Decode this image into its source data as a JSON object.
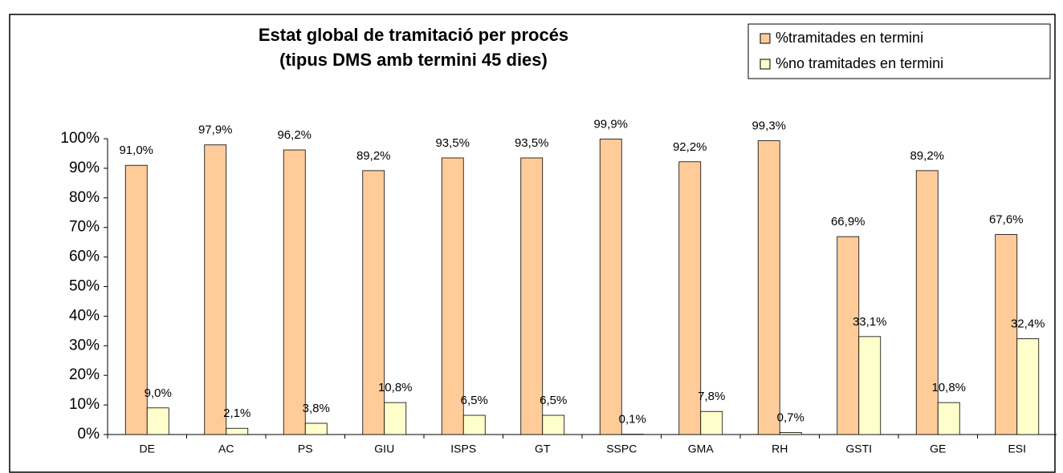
{
  "chart_data": {
    "type": "bar",
    "title": [
      "Estat global de tramitació per procés",
      "(tipus DMS amb termini 45 dies)"
    ],
    "categories": [
      "DE",
      "AC",
      "PS",
      "GIU",
      "ISPS",
      "GT",
      "SSPC",
      "GMA",
      "RH",
      "GSTI",
      "GE",
      "ESI"
    ],
    "series": [
      {
        "name": "%tramitades en termini",
        "color": "#FFCC99",
        "values": [
          91.0,
          97.9,
          96.2,
          89.2,
          93.5,
          93.5,
          99.9,
          92.2,
          99.3,
          66.9,
          89.2,
          67.6
        ],
        "value_labels": [
          "91,0%",
          "97,9%",
          "96,2%",
          "89,2%",
          "93,5%",
          "93,5%",
          "99,9%",
          "92,2%",
          "99,3%",
          "66,9%",
          "89,2%",
          "67,6%"
        ]
      },
      {
        "name": "%no tramitades en termini",
        "color": "#FFFFCC",
        "values": [
          9.0,
          2.1,
          3.8,
          10.8,
          6.5,
          6.5,
          0.1,
          7.8,
          0.7,
          33.1,
          10.8,
          32.4
        ],
        "value_labels": [
          "9,0%",
          "2,1%",
          "3,8%",
          "10,8%",
          "6,5%",
          "6,5%",
          "0,1%",
          "7,8%",
          "0,7%",
          "33,1%",
          "10,8%",
          "32,4%"
        ]
      }
    ],
    "ylim": [
      0,
      100
    ],
    "yticks": [
      {
        "value": 0,
        "label": "0%"
      },
      {
        "value": 10,
        "label": "10%"
      },
      {
        "value": 20,
        "label": "20%"
      },
      {
        "value": 30,
        "label": "30%"
      },
      {
        "value": 40,
        "label": "40%"
      },
      {
        "value": 50,
        "label": "50%"
      },
      {
        "value": 60,
        "label": "60%"
      },
      {
        "value": 70,
        "label": "70%"
      },
      {
        "value": 80,
        "label": "80%"
      },
      {
        "value": 90,
        "label": "90%"
      },
      {
        "value": 100,
        "label": "100%"
      }
    ],
    "legend": "top-right"
  }
}
